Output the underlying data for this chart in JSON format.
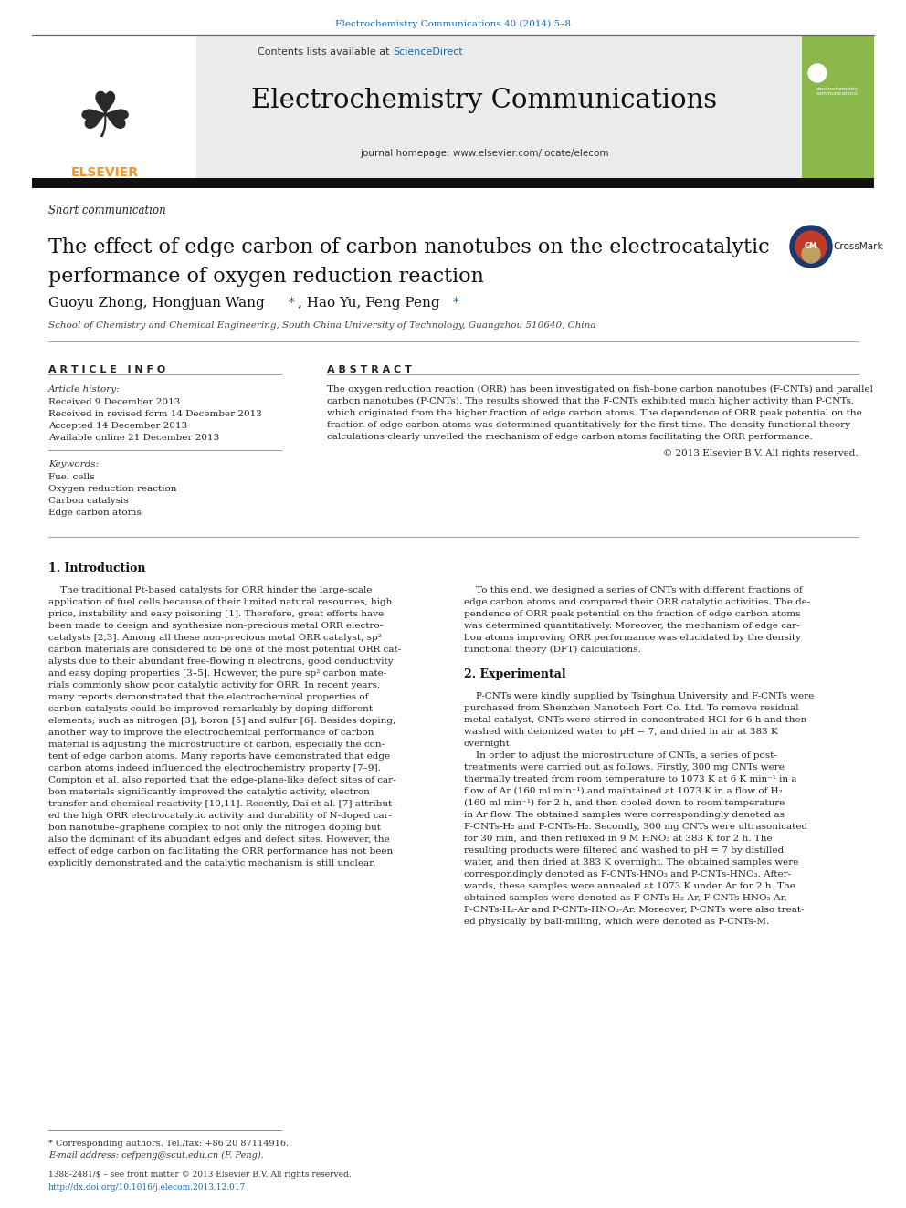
{
  "page_title": "Electrochemistry Communications 40 (2014) 5–8",
  "journal_name": "Electrochemistry Communications",
  "contents_line": "Contents lists available at ScienceDirect",
  "sciencedirect_color": "#1a6bab",
  "journal_homepage": "journal homepage: www.elsevier.com/locate/elecom",
  "section_type": "Short communication",
  "paper_title_line1": "The effect of edge carbon of carbon nanotubes on the electrocatalytic",
  "paper_title_line2": "performance of oxygen reduction reaction",
  "authors_pre": "Guoyu Zhong, Hongjuan Wang ",
  "authors_mid": ", Hao Yu, Feng Peng ",
  "affiliation": "School of Chemistry and Chemical Engineering, South China University of Technology, Guangzhou 510640, China",
  "article_info_header": "A R T I C L E   I N F O",
  "abstract_header": "A B S T R A C T",
  "article_history_label": "Article history:",
  "received": "Received 9 December 2013",
  "received_revised": "Received in revised form 14 December 2013",
  "accepted": "Accepted 14 December 2013",
  "available": "Available online 21 December 2013",
  "keywords_label": "Keywords:",
  "keywords": [
    "Fuel cells",
    "Oxygen reduction reaction",
    "Carbon catalysis",
    "Edge carbon atoms"
  ],
  "abstract_lines": [
    "The oxygen reduction reaction (ORR) has been investigated on fish-bone carbon nanotubes (F-CNTs) and parallel",
    "carbon nanotubes (P-CNTs). The results showed that the F-CNTs exhibited much higher activity than P-CNTs,",
    "which originated from the higher fraction of edge carbon atoms. The dependence of ORR peak potential on the",
    "fraction of edge carbon atoms was determined quantitatively for the first time. The density functional theory",
    "calculations clearly unveiled the mechanism of edge carbon atoms facilitating the ORR performance."
  ],
  "copyright": "© 2013 Elsevier B.V. All rights reserved.",
  "intro_header": "1. Introduction",
  "intro_col1_lines": [
    "    The traditional Pt-based catalysts for ORR hinder the large-scale",
    "application of fuel cells because of their limited natural resources, high",
    "price, instability and easy poisoning [1]. Therefore, great efforts have",
    "been made to design and synthesize non-precious metal ORR electro-",
    "catalysts [2,3]. Among all these non-precious metal ORR catalyst, sp²",
    "carbon materials are considered to be one of the most potential ORR cat-",
    "alysts due to their abundant free-flowing π electrons, good conductivity",
    "and easy doping properties [3–5]. However, the pure sp² carbon mate-",
    "rials commonly show poor catalytic activity for ORR. In recent years,",
    "many reports demonstrated that the electrochemical properties of",
    "carbon catalysts could be improved remarkably by doping different",
    "elements, such as nitrogen [3], boron [5] and sulfur [6]. Besides doping,",
    "another way to improve the electrochemical performance of carbon",
    "material is adjusting the microstructure of carbon, especially the con-",
    "tent of edge carbon atoms. Many reports have demonstrated that edge",
    "carbon atoms indeed influenced the electrochemistry property [7–9].",
    "Compton et al. also reported that the edge-plane-like defect sites of car-",
    "bon materials significantly improved the catalytic activity, electron",
    "transfer and chemical reactivity [10,11]. Recently, Dai et al. [7] attribut-",
    "ed the high ORR electrocatalytic activity and durability of N-doped car-",
    "bon nanotube–graphene complex to not only the nitrogen doping but",
    "also the dominant of its abundant edges and defect sites. However, the",
    "effect of edge carbon on facilitating the ORR performance has not been",
    "explicitly demonstrated and the catalytic mechanism is still unclear."
  ],
  "intro_col2_lines": [
    "    To this end, we designed a series of CNTs with different fractions of",
    "edge carbon atoms and compared their ORR catalytic activities. The de-",
    "pendence of ORR peak potential on the fraction of edge carbon atoms",
    "was determined quantitatively. Moreover, the mechanism of edge car-",
    "bon atoms improving ORR performance was elucidated by the density",
    "functional theory (DFT) calculations."
  ],
  "exp_header": "2. Experimental",
  "exp_col2_lines": [
    "    P-CNTs were kindly supplied by Tsinghua University and F-CNTs were",
    "purchased from Shenzhen Nanotech Port Co. Ltd. To remove residual",
    "metal catalyst, CNTs were stirred in concentrated HCl for 6 h and then",
    "washed with deionized water to pH = 7, and dried in air at 383 K",
    "overnight.",
    "    In order to adjust the microstructure of CNTs, a series of post-",
    "treatments were carried out as follows. Firstly, 300 mg CNTs were",
    "thermally treated from room temperature to 1073 K at 6 K min⁻¹ in a",
    "flow of Ar (160 ml min⁻¹) and maintained at 1073 K in a flow of H₂",
    "(160 ml min⁻¹) for 2 h, and then cooled down to room temperature",
    "in Ar flow. The obtained samples were correspondingly denoted as",
    "F-CNTs-H₂ and P-CNTs-H₂. Secondly, 300 mg CNTs were ultrasonicated",
    "for 30 min, and then refluxed in 9 M HNO₃ at 383 K for 2 h. The",
    "resulting products were filtered and washed to pH = 7 by distilled",
    "water, and then dried at 383 K overnight. The obtained samples were",
    "correspondingly denoted as F-CNTs-HNO₃ and P-CNTs-HNO₃. After-",
    "wards, these samples were annealed at 1073 K under Ar for 2 h. The",
    "obtained samples were denoted as F-CNTs-H₂-Ar, F-CNTs-HNO₃-Ar,",
    "P-CNTs-H₂-Ar and P-CNTs-HNO₃-Ar. Moreover, P-CNTs were also treat-",
    "ed physically by ball-milling, which were denoted as P-CNTs-M."
  ],
  "footnote_corresponding": "* Corresponding authors. Tel./fax: +86 20 87114916.",
  "footnote_email": "E-mail address: cefpeng@scut.edu.cn (F. Peng).",
  "footer_issn": "1388-2481/$ – see front matter © 2013 Elsevier B.V. All rights reserved.",
  "footer_doi": "http://dx.doi.org/10.1016/j.elecom.2013.12.017",
  "bg_color": "#ffffff",
  "link_blue": "#1a6bab",
  "elsevier_orange": "#f7941d",
  "dark_gray": "#222222",
  "text_color": "#1a1a1a"
}
